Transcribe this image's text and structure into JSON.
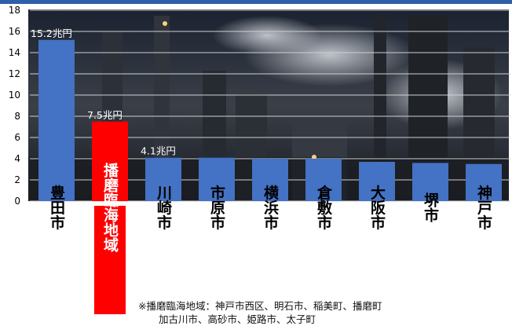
{
  "colors": {
    "bar": "#4472c4",
    "highlight": "#ff0000",
    "grid": "#d0d0d0",
    "axis_text": "#000000",
    "data_label": "#ffffff"
  },
  "chart_data": {
    "type": "bar",
    "categories": [
      "豊田市",
      "播磨臨海地域",
      "川崎市",
      "市原市",
      "横浜市",
      "倉敷市",
      "大阪市",
      "堺市",
      "神戸市"
    ],
    "values": [
      15.2,
      7.5,
      4.1,
      4.1,
      4.0,
      4.0,
      3.7,
      3.6,
      3.5
    ],
    "highlight_index": 1,
    "data_labels": [
      "15.2兆円",
      "7.5兆円",
      "4.1兆円",
      "",
      "",
      "",
      "",
      "",
      ""
    ],
    "y_ticks": [
      "0",
      "2",
      "4",
      "6",
      "8",
      "10",
      "12",
      "14",
      "16",
      "18"
    ],
    "ylim": [
      0,
      18
    ],
    "grid": true,
    "title": "",
    "xlabel": "",
    "ylabel": ""
  },
  "note": {
    "line1": "※播磨臨海地域：神戸市西区、明石市、稲美町、播磨町",
    "line2": "加古川市、高砂市、姫路市、太子町"
  }
}
